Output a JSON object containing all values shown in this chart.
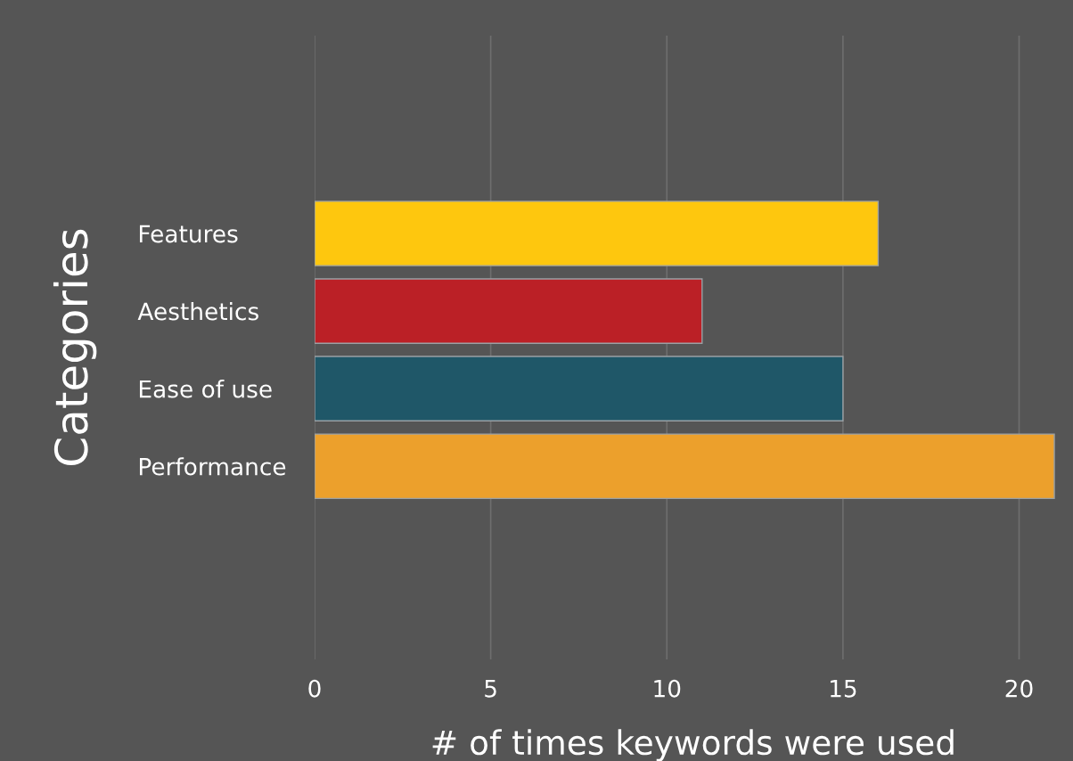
{
  "chart_data": {
    "type": "bar",
    "orientation": "horizontal",
    "xlabel": "# of times keywords were used",
    "ylabel": "Categories",
    "categories": [
      "Features",
      "Aesthetics",
      "Ease of use",
      "Performance"
    ],
    "values": [
      16,
      11,
      15,
      21
    ],
    "colors": [
      "#fec70e",
      "#bb2026",
      "#1f5768",
      "#eca02c"
    ],
    "xlim": [
      0,
      21.5
    ],
    "xticks": [
      0,
      5,
      10,
      15,
      20
    ],
    "grid": "x",
    "legend": false
  }
}
